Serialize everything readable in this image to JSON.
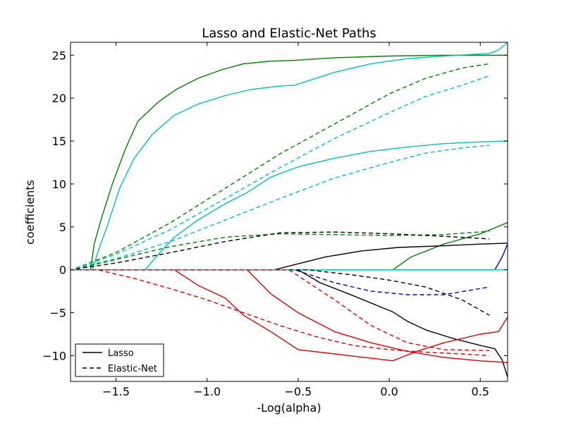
{
  "chart_data": {
    "type": "line",
    "title": "Lasso and Elastic-Net Paths",
    "xlabel": "-Log(alpha)",
    "ylabel": "coefficients",
    "xlim": [
      -1.75,
      0.65
    ],
    "ylim": [
      -13,
      26.5
    ],
    "xticks": [
      -1.5,
      -1.0,
      -0.5,
      0.0,
      0.5
    ],
    "xtick_labels": [
      "−1.5",
      "−1.0",
      "−0.5",
      "0.0",
      "0.5"
    ],
    "yticks": [
      25,
      20,
      15,
      10,
      5,
      0,
      -5,
      -10
    ],
    "ytick_labels": [
      "25",
      "20",
      "15",
      "10",
      "5",
      "0",
      "−5",
      "−10"
    ],
    "grid": false,
    "legend": {
      "position": "lower-left",
      "entries": [
        {
          "label": "Lasso",
          "style": "solid"
        },
        {
          "label": "Elastic-Net",
          "style": "dashed"
        }
      ]
    },
    "colors": {
      "green": "#008000",
      "cyan": "#00bfbf",
      "black": "#000000",
      "blue": "#0000cc",
      "red": "#dd0000"
    },
    "series": [
      {
        "method": "Lasso",
        "color": "green",
        "style": "solid",
        "points": [
          [
            -1.75,
            0
          ],
          [
            -1.64,
            0
          ],
          [
            -1.62,
            3
          ],
          [
            -1.58,
            6
          ],
          [
            -1.52,
            10
          ],
          [
            -1.45,
            14
          ],
          [
            -1.38,
            17.3
          ],
          [
            -1.27,
            19.5
          ],
          [
            -1.17,
            21
          ],
          [
            -1.05,
            22.3
          ],
          [
            -0.92,
            23.3
          ],
          [
            -0.8,
            24
          ],
          [
            -0.65,
            24.3
          ],
          [
            -0.52,
            24.4
          ],
          [
            -0.3,
            24.7
          ],
          [
            0,
            24.9
          ],
          [
            0.3,
            25
          ],
          [
            0.55,
            25
          ],
          [
            0.65,
            25
          ]
        ]
      },
      {
        "method": "Lasso",
        "color": "cyan",
        "style": "solid",
        "points": [
          [
            -1.75,
            0
          ],
          [
            -1.63,
            0
          ],
          [
            -1.6,
            2
          ],
          [
            -1.55,
            5
          ],
          [
            -1.48,
            9.5
          ],
          [
            -1.4,
            13
          ],
          [
            -1.3,
            15.8
          ],
          [
            -1.18,
            18
          ],
          [
            -1.05,
            19.3
          ],
          [
            -0.9,
            20.3
          ],
          [
            -0.76,
            21
          ],
          [
            -0.6,
            21.4
          ],
          [
            -0.52,
            21.5
          ],
          [
            -0.3,
            23
          ],
          [
            -0.1,
            24
          ],
          [
            0.1,
            24.6
          ],
          [
            0.3,
            24.9
          ],
          [
            0.55,
            25.2
          ],
          [
            0.6,
            25.6
          ],
          [
            0.65,
            26.5
          ]
        ]
      },
      {
        "method": "Lasso",
        "color": "cyan",
        "style": "solid",
        "points": [
          [
            -1.75,
            0
          ],
          [
            -1.34,
            0
          ],
          [
            -1.28,
            1.5
          ],
          [
            -1.18,
            3.8
          ],
          [
            -1.05,
            5.8
          ],
          [
            -0.9,
            7.7
          ],
          [
            -0.78,
            9
          ],
          [
            -0.65,
            10.8
          ],
          [
            -0.5,
            12
          ],
          [
            -0.3,
            13
          ],
          [
            -0.1,
            13.8
          ],
          [
            0.1,
            14.3
          ],
          [
            0.3,
            14.7
          ],
          [
            0.5,
            14.9
          ],
          [
            0.65,
            15
          ]
        ]
      },
      {
        "method": "Lasso",
        "color": "green",
        "style": "solid",
        "points": [
          [
            -1.75,
            0
          ],
          [
            0.02,
            0
          ],
          [
            0.12,
            1.5
          ],
          [
            0.3,
            3
          ],
          [
            0.5,
            4.2
          ],
          [
            0.65,
            5.5
          ]
        ]
      },
      {
        "method": "Lasso",
        "color": "black",
        "style": "solid",
        "points": [
          [
            -1.75,
            0
          ],
          [
            -0.63,
            0
          ],
          [
            -0.52,
            0.6
          ],
          [
            -0.35,
            1.5
          ],
          [
            -0.15,
            2.2
          ],
          [
            0.05,
            2.6
          ],
          [
            0.3,
            2.8
          ],
          [
            0.5,
            3
          ],
          [
            0.65,
            3.1
          ]
        ]
      },
      {
        "method": "Lasso",
        "color": "blue",
        "style": "solid",
        "points": [
          [
            -1.75,
            0
          ],
          [
            0.58,
            0
          ],
          [
            0.62,
            1.5
          ],
          [
            0.65,
            3
          ]
        ]
      },
      {
        "method": "Lasso",
        "color": "black",
        "style": "solid",
        "points": [
          [
            -1.75,
            0
          ],
          [
            -0.5,
            0
          ],
          [
            -0.38,
            -1.5
          ],
          [
            -0.2,
            -3
          ],
          [
            -0.05,
            -4.3
          ],
          [
            0.02,
            -4.9
          ],
          [
            0.1,
            -6
          ],
          [
            0.2,
            -7
          ],
          [
            0.35,
            -8
          ],
          [
            0.5,
            -8.8
          ],
          [
            0.58,
            -9.2
          ],
          [
            0.62,
            -10.5
          ],
          [
            0.65,
            -12.5
          ]
        ]
      },
      {
        "method": "Lasso",
        "color": "red",
        "style": "solid",
        "points": [
          [
            -1.75,
            0
          ],
          [
            -1.18,
            0
          ],
          [
            -1.05,
            -1.8
          ],
          [
            -0.9,
            -3.3
          ],
          [
            -0.8,
            -5.3
          ],
          [
            -0.65,
            -7.2
          ],
          [
            -0.5,
            -9.3
          ],
          [
            -0.3,
            -9.8
          ],
          [
            -0.1,
            -10.3
          ],
          [
            0.02,
            -10.6
          ],
          [
            0.15,
            -9.5
          ],
          [
            0.3,
            -8.5
          ],
          [
            0.5,
            -7.5
          ],
          [
            0.6,
            -7.2
          ],
          [
            0.65,
            -5.5
          ]
        ]
      },
      {
        "method": "Lasso",
        "color": "red",
        "style": "solid",
        "points": [
          [
            -1.75,
            0
          ],
          [
            -0.78,
            0
          ],
          [
            -0.65,
            -2.8
          ],
          [
            -0.5,
            -5
          ],
          [
            -0.3,
            -7.2
          ],
          [
            -0.1,
            -8.5
          ],
          [
            0.1,
            -9.5
          ],
          [
            0.3,
            -10.2
          ],
          [
            0.5,
            -10.6
          ],
          [
            0.65,
            -10.8
          ]
        ]
      },
      {
        "method": "Lasso",
        "color": "cyan",
        "style": "solid",
        "points": [
          [
            -1.75,
            0
          ],
          [
            0.65,
            0
          ]
        ]
      },
      {
        "method": "Elastic-Net",
        "color": "green",
        "style": "dashed",
        "points": [
          [
            -1.72,
            0.2
          ],
          [
            -1.5,
            2
          ],
          [
            -1.2,
            5.5
          ],
          [
            -0.9,
            9.5
          ],
          [
            -0.6,
            13.5
          ],
          [
            -0.3,
            17
          ],
          [
            0,
            20.5
          ],
          [
            0.2,
            22.3
          ],
          [
            0.4,
            23.5
          ],
          [
            0.55,
            24
          ]
        ]
      },
      {
        "method": "Elastic-Net",
        "color": "cyan",
        "style": "dashed",
        "points": [
          [
            -1.72,
            0.2
          ],
          [
            -1.5,
            1.8
          ],
          [
            -1.2,
            4.7
          ],
          [
            -0.9,
            8.3
          ],
          [
            -0.6,
            11.9
          ],
          [
            -0.3,
            15.3
          ],
          [
            0,
            18.3
          ],
          [
            0.2,
            20.2
          ],
          [
            0.4,
            21.5
          ],
          [
            0.55,
            22.6
          ]
        ]
      },
      {
        "method": "Elastic-Net",
        "color": "cyan",
        "style": "dashed",
        "points": [
          [
            -1.72,
            0.2
          ],
          [
            -1.5,
            1.3
          ],
          [
            -1.2,
            3.3
          ],
          [
            -0.9,
            5.8
          ],
          [
            -0.6,
            8.3
          ],
          [
            -0.3,
            10.7
          ],
          [
            0,
            12.5
          ],
          [
            0.2,
            13.6
          ],
          [
            0.4,
            14.2
          ],
          [
            0.55,
            14.5
          ]
        ]
      },
      {
        "method": "Elastic-Net",
        "color": "green",
        "style": "dashed",
        "points": [
          [
            -1.72,
            0.1
          ],
          [
            -1.5,
            1.2
          ],
          [
            -1.2,
            2.7
          ],
          [
            -0.9,
            3.8
          ],
          [
            -0.6,
            4.2
          ],
          [
            -0.3,
            4.1
          ],
          [
            0,
            4
          ],
          [
            0.3,
            4.1
          ],
          [
            0.55,
            4.5
          ]
        ]
      },
      {
        "method": "Elastic-Net",
        "color": "black",
        "style": "dashed",
        "points": [
          [
            -1.72,
            0.1
          ],
          [
            -1.5,
            0.8
          ],
          [
            -1.2,
            2
          ],
          [
            -0.9,
            3.3
          ],
          [
            -0.6,
            4.3
          ],
          [
            -0.3,
            4.4
          ],
          [
            0,
            4.2
          ],
          [
            0.3,
            3.9
          ],
          [
            0.55,
            3.6
          ]
        ]
      },
      {
        "method": "Elastic-Net",
        "color": "blue",
        "style": "dashed",
        "points": [
          [
            -1.75,
            0
          ],
          [
            -0.52,
            0
          ],
          [
            -0.3,
            -1.5
          ],
          [
            -0.1,
            -2.5
          ],
          [
            0.1,
            -2.9
          ],
          [
            0.3,
            -2.9
          ],
          [
            0.55,
            -2
          ]
        ]
      },
      {
        "method": "Elastic-Net",
        "color": "black",
        "style": "dashed",
        "points": [
          [
            -1.75,
            0
          ],
          [
            -0.45,
            0
          ],
          [
            -0.2,
            -0.6
          ],
          [
            0,
            -1.2
          ],
          [
            0.2,
            -2
          ],
          [
            0.4,
            -3.5
          ],
          [
            0.55,
            -5.3
          ]
        ]
      },
      {
        "method": "Elastic-Net",
        "color": "red",
        "style": "dashed",
        "points": [
          [
            -1.75,
            0
          ],
          [
            -1.6,
            0
          ],
          [
            -1.4,
            -1
          ],
          [
            -1.2,
            -2.2
          ],
          [
            -1,
            -3.5
          ],
          [
            -0.8,
            -5
          ],
          [
            -0.6,
            -6.5
          ],
          [
            -0.4,
            -7.8
          ],
          [
            -0.2,
            -8.8
          ],
          [
            0,
            -9.3
          ],
          [
            0.2,
            -9.6
          ],
          [
            0.4,
            -9.8
          ],
          [
            0.55,
            -10
          ]
        ]
      },
      {
        "method": "Elastic-Net",
        "color": "red",
        "style": "dashed",
        "points": [
          [
            -1.75,
            0
          ],
          [
            -0.55,
            0
          ],
          [
            -0.3,
            -3.5
          ],
          [
            -0.1,
            -6.5
          ],
          [
            0.1,
            -8.5
          ],
          [
            0.3,
            -9.3
          ],
          [
            0.55,
            -9.4
          ]
        ]
      }
    ]
  }
}
